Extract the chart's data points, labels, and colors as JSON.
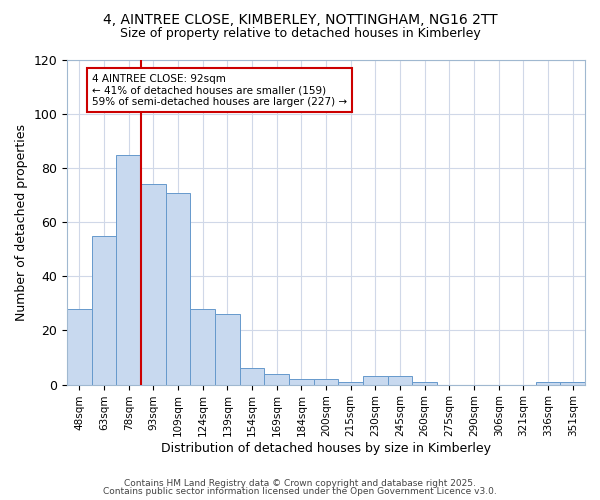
{
  "title_line1": "4, AINTREE CLOSE, KIMBERLEY, NOTTINGHAM, NG16 2TT",
  "title_line2": "Size of property relative to detached houses in Kimberley",
  "xlabel": "Distribution of detached houses by size in Kimberley",
  "ylabel": "Number of detached properties",
  "bar_labels": [
    "48sqm",
    "63sqm",
    "78sqm",
    "93sqm",
    "109sqm",
    "124sqm",
    "139sqm",
    "154sqm",
    "169sqm",
    "184sqm",
    "200sqm",
    "215sqm",
    "230sqm",
    "245sqm",
    "260sqm",
    "275sqm",
    "290sqm",
    "306sqm",
    "321sqm",
    "336sqm",
    "351sqm"
  ],
  "bar_values": [
    28,
    55,
    85,
    74,
    71,
    28,
    26,
    6,
    4,
    2,
    2,
    1,
    3,
    3,
    1,
    0,
    0,
    0,
    0,
    1,
    1
  ],
  "bar_color": "#c8d9ef",
  "bar_edge_color": "#6699cc",
  "bg_color": "#ffffff",
  "plot_bg_color": "#ffffff",
  "grid_color": "#d0d8e8",
  "vline_x_idx": 3,
  "vline_color": "#cc0000",
  "annotation_text": "4 AINTREE CLOSE: 92sqm\n← 41% of detached houses are smaller (159)\n59% of semi-detached houses are larger (227) →",
  "annotation_box_color": "#cc0000",
  "footer_line1": "Contains HM Land Registry data © Crown copyright and database right 2025.",
  "footer_line2": "Contains public sector information licensed under the Open Government Licence v3.0.",
  "ylim": [
    0,
    120
  ],
  "yticks": [
    0,
    20,
    40,
    60,
    80,
    100,
    120
  ]
}
